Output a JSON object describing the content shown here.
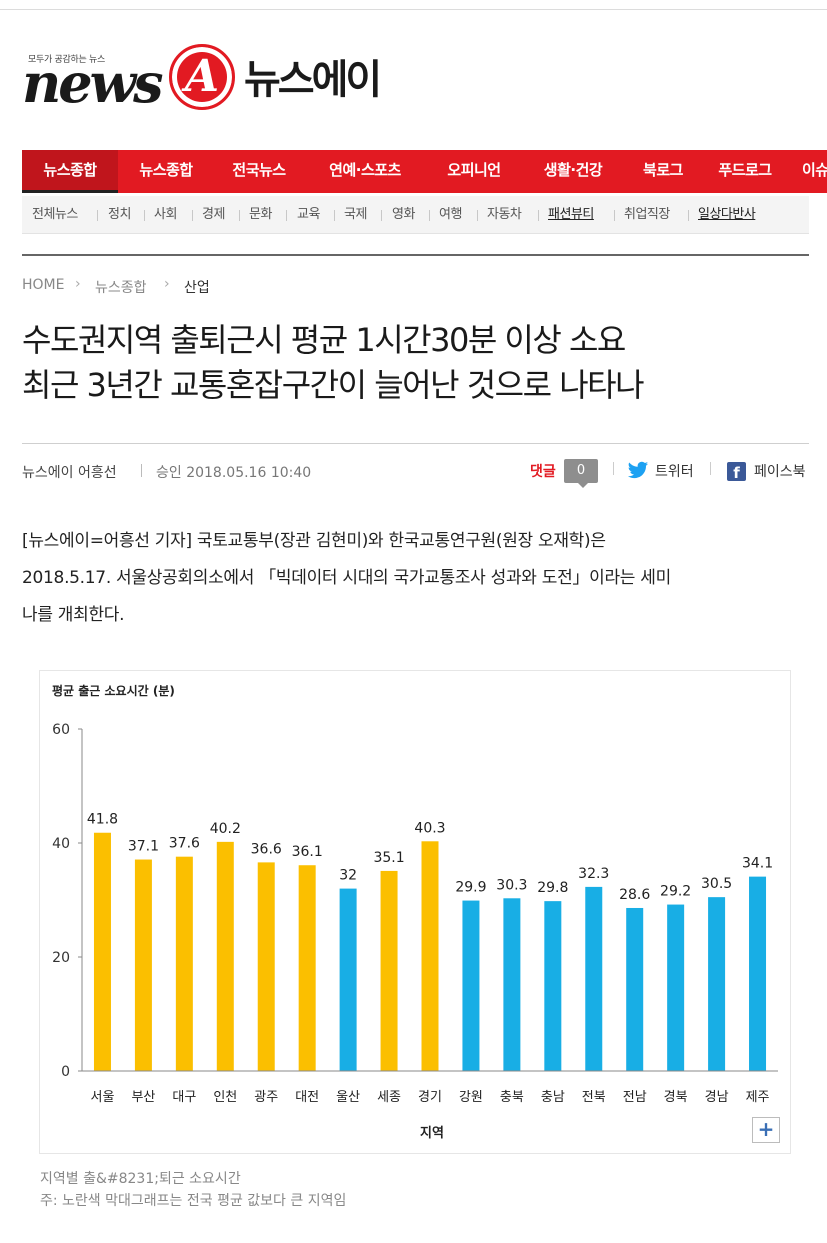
{
  "logo": {
    "tagline": "모두가 공감하는 뉴스",
    "news": "news",
    "letter": "A",
    "korean": "뉴스에이",
    "brand_red": "#e21a22"
  },
  "main_nav": [
    "뉴스종합",
    "뉴스종합",
    "전국뉴스",
    "연예·스포츠",
    "오피니언",
    "생활·건강",
    "북로그",
    "푸드로그",
    "이슈"
  ],
  "sub_nav": [
    "전체뉴스",
    "정치",
    "사회",
    "경제",
    "문화",
    "교육",
    "국제",
    "영화",
    "여행",
    "자동차",
    "패션뷰티",
    "취업직장",
    "일상다반사"
  ],
  "breadcrumb": [
    "HOME",
    "뉴스종합",
    "산업"
  ],
  "headline": {
    "line1": "수도권지역 출퇴근시 평균 1시간30분 이상 소요",
    "line2": "최근 3년간 교통혼잡구간이 늘어난 것으로 나타나"
  },
  "byline": {
    "author": "뉴스에이 어흥선",
    "approved": "승인  2018.05.16 10:40"
  },
  "share": {
    "comment_label": "댓글",
    "comment_count": "0",
    "twitter": "트위터",
    "facebook": "페이스북",
    "twitter_color": "#1da1f2",
    "facebook_color": "#3b5998"
  },
  "body": {
    "line1": "[뉴스에이=어흥선 기자] 국토교통부(장관 김현미)와 한국교통연구원(원장 오재학)은",
    "line2": "2018.5.17. 서울상공회의소에서 「빅데이터 시대의 국가교통조사 성과와 도전」이라는 세미",
    "line3": "나를 개최한다."
  },
  "chart_data": {
    "type": "bar",
    "title": "평균 출근 소요시간 (분)",
    "xlabel": "지역",
    "ylabel": "",
    "ylim": [
      0,
      60
    ],
    "yticks": [
      "0",
      "20",
      "40",
      "60"
    ],
    "categories": [
      "서울",
      "부산",
      "대구",
      "인천",
      "광주",
      "대전",
      "울산",
      "세종",
      "경기",
      "강원",
      "충북",
      "충남",
      "전북",
      "전남",
      "경북",
      "경남",
      "제주"
    ],
    "values": [
      41.8,
      37.1,
      37.6,
      40.2,
      36.6,
      36.1,
      32,
      35.1,
      40.3,
      29.9,
      30.3,
      29.8,
      32.3,
      28.6,
      29.2,
      30.5,
      34.1
    ],
    "value_labels": [
      "41.8",
      "37.1",
      "37.6",
      "40.2",
      "36.6",
      "36.1",
      "32",
      "35.1",
      "40.3",
      "29.9",
      "30.3",
      "29.8",
      "32.3",
      "28.6",
      "29.2",
      "30.5",
      "34.1"
    ],
    "colors": [
      "#fbbf00",
      "#fbbf00",
      "#fbbf00",
      "#fbbf00",
      "#fbbf00",
      "#fbbf00",
      "#18aee5",
      "#fbbf00",
      "#fbbf00",
      "#18aee5",
      "#18aee5",
      "#18aee5",
      "#18aee5",
      "#18aee5",
      "#18aee5",
      "#18aee5",
      "#18aee5"
    ],
    "grid": false,
    "zoom_label": "+"
  },
  "caption": {
    "line1": "지역별 출&#8231;퇴근 소요시간",
    "line2": "주: 노란색 막대그래프는 전국 평균 값보다 큰 지역임"
  }
}
